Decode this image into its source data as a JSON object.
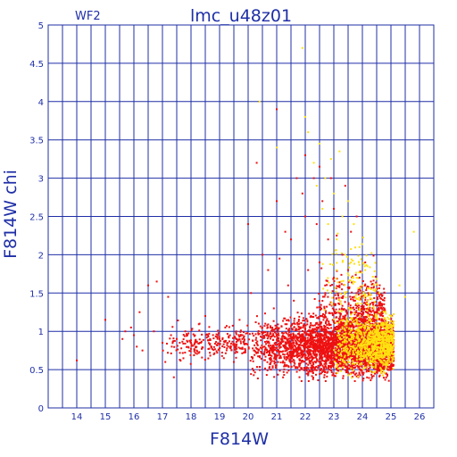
{
  "chart_data": {
    "type": "scatter",
    "title": "lmc_u48z01",
    "subtitle": "WF2",
    "xlabel": "F814W",
    "ylabel": "F814W chi",
    "xlim": [
      13,
      26.5
    ],
    "ylim": [
      0,
      5
    ],
    "x_ticks": [
      14,
      15,
      16,
      17,
      18,
      19,
      20,
      21,
      22,
      23,
      24,
      25,
      26
    ],
    "y_ticks": [
      0,
      0.5,
      1,
      1.5,
      2,
      2.5,
      3,
      3.5,
      4,
      4.5,
      5
    ],
    "x_tick_labels": [
      "14",
      "15",
      "16",
      "17",
      "18",
      "19",
      "20",
      "21",
      "22",
      "23",
      "24",
      "25",
      "26"
    ],
    "y_tick_labels": [
      "0",
      "0.5",
      "1",
      "1.5",
      "2",
      "2.5",
      "3",
      "3.5",
      "4",
      "4.5",
      "5"
    ],
    "grid": true,
    "grid_minor_x_step": 0.5,
    "grid_minor_y_step": 0.5,
    "colors": {
      "axis": "#1f2fa6",
      "red_points": "#ee1111",
      "yellow_points": "#ffe010",
      "background": "#ffffff"
    },
    "series": [
      {
        "color": "#ee1111",
        "points": [
          [
            14.0,
            0.62
          ],
          [
            15.0,
            1.15
          ],
          [
            15.6,
            0.9
          ],
          [
            15.7,
            1.0
          ],
          [
            15.9,
            1.05
          ],
          [
            16.0,
            0.95
          ],
          [
            16.1,
            0.8
          ],
          [
            16.2,
            1.25
          ],
          [
            16.3,
            0.75
          ],
          [
            16.5,
            1.6
          ],
          [
            16.8,
            1.65
          ],
          [
            16.7,
            1.0
          ],
          [
            17.0,
            0.85
          ],
          [
            17.1,
            0.6
          ],
          [
            17.2,
            1.45
          ],
          [
            17.3,
            0.95
          ],
          [
            17.4,
            0.4
          ],
          [
            17.5,
            0.9
          ],
          [
            17.8,
            1.0
          ],
          [
            18.0,
            0.85
          ],
          [
            18.2,
            0.75
          ],
          [
            18.3,
            1.1
          ],
          [
            18.5,
            1.2
          ],
          [
            18.6,
            0.95
          ],
          [
            18.8,
            0.7
          ],
          [
            19.0,
            0.9
          ],
          [
            19.2,
            1.05
          ],
          [
            19.4,
            0.8
          ],
          [
            19.5,
            0.6
          ],
          [
            19.7,
            1.15
          ],
          [
            19.8,
            0.95
          ],
          [
            20.0,
            2.4
          ],
          [
            20.1,
            1.5
          ],
          [
            20.2,
            0.75
          ],
          [
            20.3,
            3.2
          ],
          [
            20.5,
            2.0
          ],
          [
            20.6,
            1.1
          ],
          [
            20.7,
            1.8
          ],
          [
            20.8,
            0.5
          ],
          [
            20.9,
            1.3
          ],
          [
            21.0,
            3.9
          ],
          [
            21.0,
            2.7
          ],
          [
            21.1,
            1.95
          ],
          [
            21.2,
            0.9
          ],
          [
            21.3,
            2.3
          ],
          [
            21.4,
            1.6
          ],
          [
            21.5,
            2.2
          ],
          [
            21.6,
            1.4
          ],
          [
            21.7,
            3.0
          ],
          [
            21.8,
            0.95
          ],
          [
            21.9,
            2.8
          ],
          [
            22.0,
            3.3
          ],
          [
            22.0,
            2.5
          ],
          [
            22.1,
            1.8
          ],
          [
            22.2,
            1.2
          ],
          [
            22.3,
            3.0
          ],
          [
            22.4,
            2.4
          ],
          [
            22.5,
            3.15
          ],
          [
            22.5,
            1.9
          ],
          [
            22.6,
            2.7
          ],
          [
            22.7,
            1.5
          ],
          [
            22.8,
            2.2
          ],
          [
            22.9,
            3.0
          ],
          [
            23.0,
            2.6
          ],
          [
            23.0,
            1.7
          ],
          [
            23.1,
            2.25
          ],
          [
            23.2,
            1.6
          ],
          [
            23.3,
            2.0
          ],
          [
            23.4,
            2.9
          ],
          [
            23.5,
            1.8
          ],
          [
            23.6,
            2.3
          ],
          [
            23.7,
            1.4
          ],
          [
            23.8,
            2.5
          ],
          [
            23.9,
            1.7
          ],
          [
            24.0,
            1.3
          ],
          [
            24.1,
            1.9
          ],
          [
            24.2,
            1.5
          ],
          [
            24.3,
            1.65
          ],
          [
            24.4,
            1.2
          ],
          [
            24.6,
            1.1
          ],
          [
            24.8,
            1.0
          ],
          [
            25.0,
            0.85
          ],
          [
            22.4,
            1.05
          ],
          [
            23.2,
            1.15
          ]
        ]
      },
      {
        "color": "#ffe010",
        "points": [
          [
            20.4,
            4.0
          ],
          [
            21.0,
            3.4
          ],
          [
            21.9,
            4.7
          ],
          [
            22.0,
            3.8
          ],
          [
            22.1,
            3.6
          ],
          [
            22.3,
            3.2
          ],
          [
            22.4,
            2.9
          ],
          [
            22.5,
            3.45
          ],
          [
            22.6,
            2.6
          ],
          [
            22.7,
            3.0
          ],
          [
            22.8,
            2.4
          ],
          [
            22.9,
            3.25
          ],
          [
            23.0,
            2.8
          ],
          [
            23.1,
            2.2
          ],
          [
            23.2,
            3.35
          ],
          [
            23.3,
            2.5
          ],
          [
            23.4,
            2.0
          ],
          [
            23.5,
            2.7
          ],
          [
            23.6,
            1.9
          ],
          [
            23.7,
            2.4
          ],
          [
            23.8,
            1.7
          ],
          [
            23.9,
            2.1
          ],
          [
            24.0,
            1.6
          ],
          [
            24.1,
            1.8
          ],
          [
            24.2,
            1.4
          ],
          [
            24.3,
            1.55
          ],
          [
            24.4,
            1.3
          ],
          [
            24.5,
            1.2
          ],
          [
            24.6,
            1.5
          ],
          [
            24.7,
            1.1
          ],
          [
            24.8,
            1.0
          ],
          [
            24.9,
            0.9
          ],
          [
            25.0,
            1.2
          ],
          [
            25.3,
            1.6
          ],
          [
            25.5,
            1.45
          ],
          [
            25.8,
            2.3
          ],
          [
            24.2,
            0.95
          ],
          [
            24.4,
            0.85
          ],
          [
            24.6,
            0.9
          ],
          [
            24.8,
            0.75
          ],
          [
            24.9,
            0.8
          ],
          [
            25.0,
            0.95
          ],
          [
            24.7,
            0.65
          ],
          [
            24.5,
            0.7
          ]
        ]
      }
    ],
    "dense_clusters": [
      {
        "color": "#ee1111",
        "x_range": [
          20.0,
          25.1
        ],
        "y_center": 0.8,
        "y_spread": 0.35,
        "count": 3200
      },
      {
        "color": "#ee1111",
        "x_range": [
          17.0,
          20.0
        ],
        "y_center": 0.85,
        "y_spread": 0.2,
        "count": 250
      },
      {
        "color": "#ee1111",
        "x_range": [
          22.3,
          24.8
        ],
        "y_center": 1.15,
        "y_spread": 0.55,
        "count": 700
      },
      {
        "color": "#ffe010",
        "x_range": [
          23.0,
          25.1
        ],
        "y_center": 0.85,
        "y_spread": 0.35,
        "count": 900
      },
      {
        "color": "#ffe010",
        "x_range": [
          22.5,
          24.5
        ],
        "y_center": 1.6,
        "y_spread": 0.6,
        "count": 130
      }
    ]
  }
}
